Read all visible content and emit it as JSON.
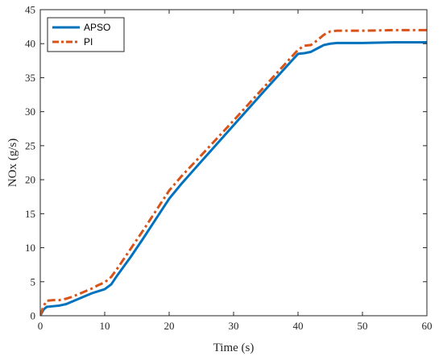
{
  "chart_data": {
    "type": "line",
    "title": "",
    "xlabel": "Time (s)",
    "ylabel": "NOx (g/s)",
    "xlim": [
      0,
      60
    ],
    "ylim": [
      0,
      45
    ],
    "xticks": [
      0,
      10,
      20,
      30,
      40,
      50,
      60
    ],
    "yticks": [
      0,
      5,
      10,
      15,
      20,
      25,
      30,
      35,
      40,
      45
    ],
    "grid": false,
    "legend_position": "top-left",
    "series": [
      {
        "name": "APSO",
        "color": "#0072BD",
        "style": "solid",
        "points": [
          [
            0,
            0
          ],
          [
            0.5,
            0.9
          ],
          [
            1,
            1.3
          ],
          [
            2,
            1.4
          ],
          [
            3,
            1.5
          ],
          [
            4,
            1.7
          ],
          [
            5,
            2.1
          ],
          [
            6,
            2.5
          ],
          [
            7,
            2.9
          ],
          [
            8,
            3.3
          ],
          [
            9,
            3.6
          ],
          [
            10,
            3.9
          ],
          [
            11,
            4.6
          ],
          [
            12,
            6.0
          ],
          [
            14,
            8.6
          ],
          [
            16,
            11.4
          ],
          [
            18,
            14.3
          ],
          [
            20,
            17.2
          ],
          [
            22,
            19.5
          ],
          [
            25,
            22.7
          ],
          [
            30,
            28.0
          ],
          [
            35,
            33.3
          ],
          [
            40,
            38.5
          ],
          [
            41,
            38.6
          ],
          [
            42,
            38.8
          ],
          [
            43,
            39.3
          ],
          [
            44,
            39.8
          ],
          [
            45,
            40.0
          ],
          [
            46,
            40.1
          ],
          [
            50,
            40.1
          ],
          [
            55,
            40.2
          ],
          [
            60,
            40.2
          ]
        ]
      },
      {
        "name": "PI",
        "color": "#D95319",
        "style": "dash-dot",
        "points": [
          [
            0,
            0
          ],
          [
            0.5,
            1.4
          ],
          [
            1,
            2.2
          ],
          [
            2,
            2.3
          ],
          [
            3,
            2.3
          ],
          [
            4,
            2.5
          ],
          [
            5,
            2.8
          ],
          [
            6,
            3.2
          ],
          [
            7,
            3.6
          ],
          [
            8,
            4.0
          ],
          [
            9,
            4.5
          ],
          [
            10,
            4.9
          ],
          [
            11,
            5.7
          ],
          [
            12,
            7.0
          ],
          [
            14,
            9.8
          ],
          [
            16,
            12.6
          ],
          [
            18,
            15.5
          ],
          [
            20,
            18.4
          ],
          [
            22,
            20.6
          ],
          [
            25,
            23.6
          ],
          [
            30,
            28.7
          ],
          [
            35,
            33.9
          ],
          [
            40,
            39.1
          ],
          [
            41,
            39.7
          ],
          [
            42,
            39.8
          ],
          [
            43,
            40.5
          ],
          [
            44,
            41.3
          ],
          [
            45,
            41.8
          ],
          [
            46,
            41.9
          ],
          [
            50,
            41.9
          ],
          [
            55,
            42.0
          ],
          [
            60,
            42.0
          ]
        ]
      }
    ]
  }
}
